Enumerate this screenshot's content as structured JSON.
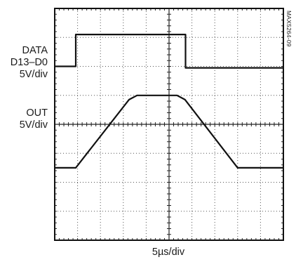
{
  "chart_data": {
    "type": "line",
    "id_tag": "MAX5264-09",
    "channel_labels": [
      {
        "lines": [
          "DATA",
          "D13–D0",
          "5V/div"
        ]
      },
      {
        "lines": [
          "OUT",
          "5V/div"
        ]
      }
    ],
    "xlabel": "5µs/div",
    "grid": {
      "divisions_x": 10,
      "divisions_y": 8,
      "minor_per_div": 5
    },
    "xlim": [
      0,
      10
    ],
    "ylim": [
      0,
      8
    ],
    "series": [
      {
        "x": [
          0,
          0.92,
          0.92,
          5.72,
          5.72,
          10
        ],
        "y": [
          6.0,
          6.0,
          7.1,
          7.1,
          5.95,
          5.95
        ]
      },
      {
        "x": [
          0,
          0.92,
          3.25,
          3.6,
          5.35,
          5.7,
          8.0,
          10
        ],
        "y": [
          2.5,
          2.5,
          4.85,
          5.0,
          5.0,
          4.85,
          2.5,
          2.5
        ]
      }
    ]
  }
}
